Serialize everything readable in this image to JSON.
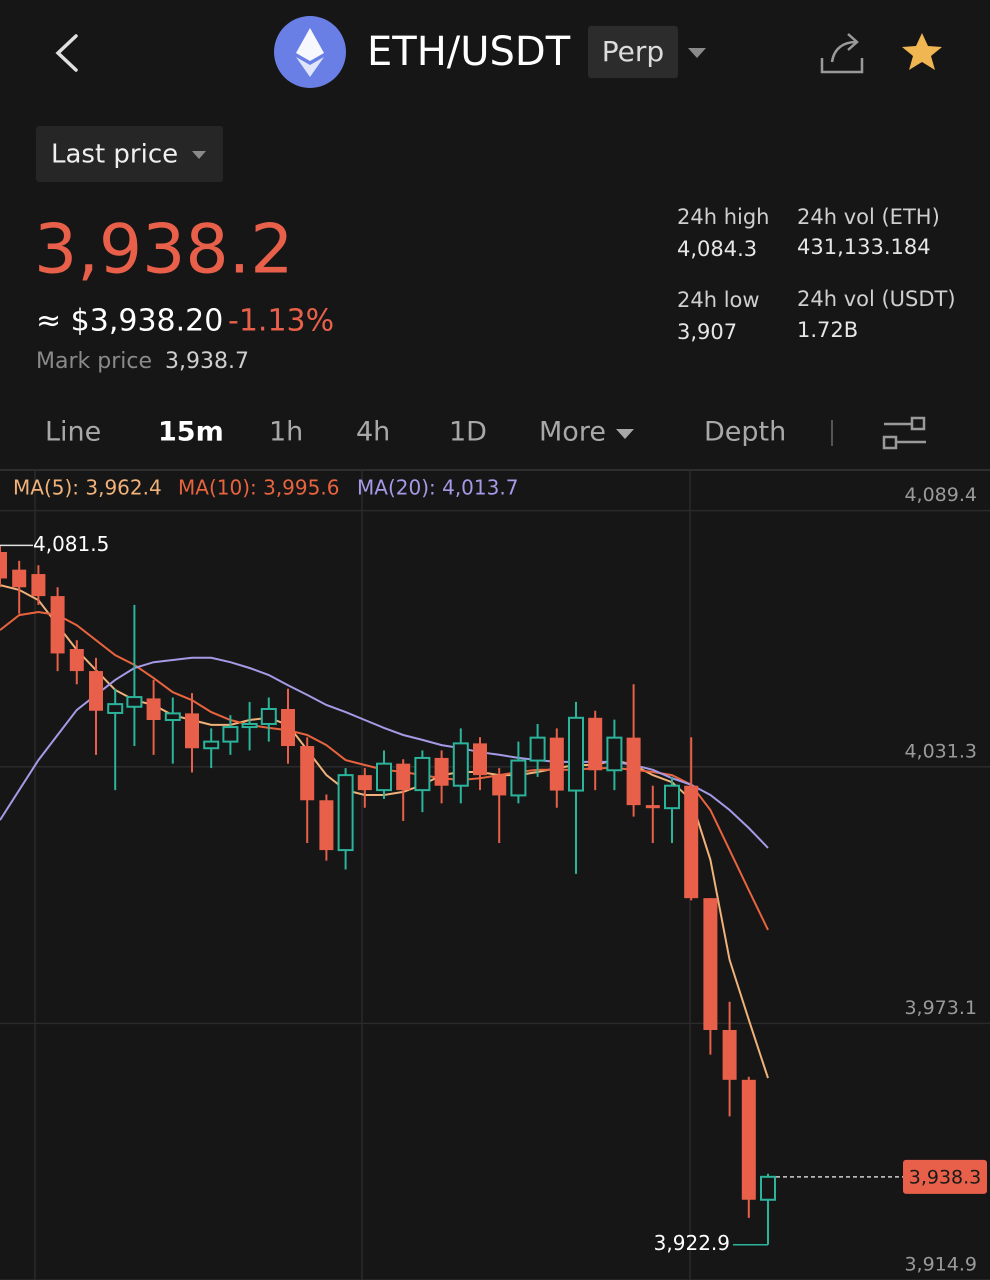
{
  "header": {
    "pair": "ETH/USDT",
    "badge": "Perp"
  },
  "price": {
    "selector": "Last price",
    "last": "3,938.2",
    "approx": "≈ $3,938.20",
    "change": "-1.13%",
    "mark_label": "Mark price",
    "mark_value": "3,938.7"
  },
  "stats": [
    {
      "label": "24h high",
      "value": "4,084.3"
    },
    {
      "label": "24h vol (ETH)",
      "value": "431,133.184"
    },
    {
      "label": "24h low",
      "value": "3,907"
    },
    {
      "label": "24h vol (USDT)",
      "value": "1.72B"
    }
  ],
  "tabs": [
    "Line",
    "15m",
    "1h",
    "4h",
    "1D",
    "More",
    "Depth"
  ],
  "chart_data": {
    "type": "candlestick",
    "up_color": "#2cb39b",
    "down_color": "#e8604a",
    "ylim": [
      3914.9,
      4098.6
    ],
    "yticks": [
      {
        "value": 4089.4,
        "label": "4,089.4"
      },
      {
        "value": 4031.3,
        "label": "4,031.3"
      },
      {
        "value": 3973.1,
        "label": "3,973.1"
      },
      {
        "value": 3914.9,
        "label": "3,914.9"
      }
    ],
    "grid": true,
    "open": [
      4080,
      4076,
      4075,
      4070,
      4058,
      4053,
      4043.5,
      4044.9,
      4046.8,
      4041.9,
      4043.4,
      4035.5,
      4037,
      4040.3,
      4041,
      4044.4,
      4036,
      4023.7,
      4012.4,
      4029.4,
      4026,
      4032,
      4026,
      4033.3,
      4027,
      4036.6,
      4029.4,
      4024.8,
      4032.7,
      4037.9,
      4025.9,
      4042.4,
      4030.5,
      4037.9,
      4022.6,
      4021.9,
      4027,
      4001.5,
      3971.6,
      3960.3,
      3933.1
    ],
    "high": [
      4081.5,
      4078,
      4077,
      4072,
      4060,
      4056,
      4049,
      4068,
      4051,
      4047,
      4048,
      4040,
      4043,
      4046,
      4047,
      4049,
      4038,
      4025,
      4031,
      4031,
      4035,
      4033,
      4035,
      4035,
      4040,
      4038,
      4031,
      4037,
      4041,
      4040,
      4046,
      4044,
      4042,
      4050,
      4027,
      4029,
      4038,
      4001.5,
      3978,
      3961,
      3939
    ],
    "low": [
      4072,
      4066,
      4068,
      4053,
      4050,
      4034,
      4026,
      4036,
      4034,
      4032,
      4030,
      4031,
      4034,
      4035,
      4037,
      4032,
      4014,
      4010,
      4008,
      4022,
      4024,
      4019,
      4021,
      4023,
      4023,
      4026,
      4014,
      4023,
      4029,
      4022,
      4007,
      4026,
      4026,
      4020,
      4014,
      4014,
      4001,
      3966,
      3952,
      3929,
      3922.9
    ],
    "close": [
      4074,
      4072,
      4070,
      4057,
      4053,
      4044,
      4045.5,
      4047.1,
      4041.9,
      4043.4,
      4035.5,
      4037,
      4040.3,
      4041,
      4044.4,
      4036,
      4023.7,
      4012.4,
      4029.4,
      4026,
      4032,
      4026,
      4033.3,
      4027,
      4036.6,
      4029.4,
      4024.8,
      4032.7,
      4037.9,
      4025.9,
      4042.4,
      4030.5,
      4037.9,
      4022.6,
      4021.9,
      4027,
      4001.5,
      3971.6,
      3960.3,
      3933.1,
      3938.3
    ],
    "series": [
      {
        "name": "MA(5): 3,962.4",
        "color": "#f0b27a",
        "values": [
          4072.5,
          4071.4,
          4069.1,
          4063.4,
          4057.8,
          4053.2,
          4048.7,
          4046.4,
          4045.3,
          4043.0,
          4041.9,
          4040.8,
          4040.8,
          4041.9,
          4042.4,
          4040.8,
          4035.1,
          4029.4,
          4026.0,
          4024.9,
          4024.9,
          4025.6,
          4027.2,
          4029.4,
          4030.1,
          4030.1,
          4029.4,
          4029.4,
          4030.1,
          4031.0,
          4031.7,
          4031.7,
          4032.8,
          4031.7,
          4029.4,
          4027.8,
          4023.8,
          4010.2,
          3987.5,
          3973.9,
          3960.7
        ]
      },
      {
        "name": "MA(10): 3,995.6",
        "color": "#e8643f",
        "values": [
          4062.3,
          4065.7,
          4066.4,
          4065.7,
          4063.4,
          4060.0,
          4056.6,
          4054.4,
          4051.4,
          4048.2,
          4046.4,
          4043.7,
          4041.9,
          4040.8,
          4040.1,
          4039.6,
          4038.5,
          4036.2,
          4032.8,
          4031.7,
          4030.6,
          4030.1,
          4029.4,
          4028.7,
          4028.3,
          4028.7,
          4029.4,
          4030.1,
          4030.6,
          4030.6,
          4030.6,
          4031.0,
          4031.0,
          4030.6,
          4030.1,
          4029.4,
          4027.2,
          4021.5,
          4012.4,
          4003.3,
          3994.3
        ]
      },
      {
        "name": "MA(20): 4,013.7",
        "color": "#a59ae6",
        "values": [
          4019.2,
          4026.0,
          4032.8,
          4038.5,
          4044.2,
          4047.6,
          4051.0,
          4053.7,
          4055.0,
          4055.5,
          4056.0,
          4056.0,
          4055.0,
          4053.7,
          4052.1,
          4049.8,
          4047.6,
          4045.3,
          4043.7,
          4041.9,
          4040.1,
          4038.5,
          4037.4,
          4036.2,
          4035.5,
          4034.6,
          4034.0,
          4033.3,
          4032.8,
          4032.4,
          4032.4,
          4032.4,
          4032.4,
          4031.7,
          4030.6,
          4028.7,
          4027.2,
          4024.9,
          4021.5,
          4017.4,
          4012.9
        ]
      }
    ],
    "high_label": {
      "value": 4081.5,
      "label": "4,081.5"
    },
    "low_label": {
      "value": 3922.9,
      "label": "3,922.9"
    },
    "last_label": {
      "value": 3938.3,
      "label": "3,938.3"
    }
  }
}
